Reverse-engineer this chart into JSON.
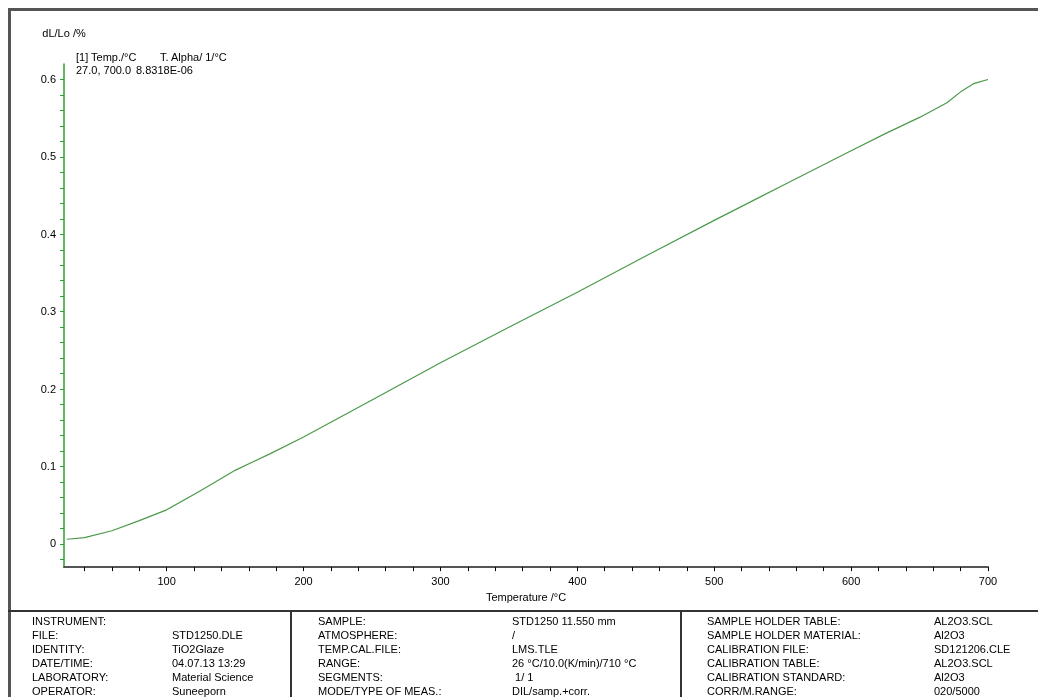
{
  "chart_data": {
    "type": "line",
    "xlabel": "Temperature /°C",
    "ylabel": "dL/Lo /%",
    "x": [
      27,
      40,
      60,
      80,
      100,
      125,
      150,
      175,
      200,
      250,
      300,
      350,
      400,
      450,
      500,
      550,
      600,
      625,
      650,
      670,
      680,
      690,
      700
    ],
    "series": [
      {
        "color": "#4a9a4a",
        "values": [
          0.006,
          0.008,
          0.017,
          0.03,
          0.044,
          0.069,
          0.095,
          0.116,
          0.138,
          0.186,
          0.234,
          0.28,
          0.325,
          0.372,
          0.418,
          0.463,
          0.508,
          0.53,
          0.551,
          0.57,
          0.584,
          0.595,
          0.6
        ]
      }
    ],
    "xlim": [
      25,
      700
    ],
    "ylim": [
      -0.03,
      0.62
    ],
    "xticks": [
      {
        "value": 40,
        "label": null
      },
      {
        "value": 60,
        "label": null
      },
      {
        "value": 80,
        "label": null
      },
      100,
      {
        "value": 120,
        "label": null
      },
      {
        "value": 140,
        "label": null
      },
      {
        "value": 160,
        "label": null
      },
      {
        "value": 180,
        "label": null
      },
      200,
      {
        "value": 220,
        "label": null
      },
      {
        "value": 240,
        "label": null
      },
      {
        "value": 260,
        "label": null
      },
      {
        "value": 280,
        "label": null
      },
      300,
      {
        "value": 320,
        "label": null
      },
      {
        "value": 340,
        "label": null
      },
      {
        "value": 360,
        "label": null
      },
      {
        "value": 380,
        "label": null
      },
      400,
      {
        "value": 420,
        "label": null
      },
      {
        "value": 440,
        "label": null
      },
      {
        "value": 460,
        "label": null
      },
      {
        "value": 480,
        "label": null
      },
      500,
      {
        "value": 520,
        "label": null
      },
      {
        "value": 540,
        "label": null
      },
      {
        "value": 560,
        "label": null
      },
      {
        "value": 580,
        "label": null
      },
      600,
      {
        "value": 620,
        "label": null
      },
      {
        "value": 640,
        "label": null
      },
      {
        "value": 660,
        "label": null
      },
      {
        "value": 680,
        "label": null
      },
      700
    ],
    "yticks": [
      {
        "value": -0.02,
        "label": null
      },
      0,
      {
        "value": 0.02,
        "label": null
      },
      {
        "value": 0.04,
        "label": null
      },
      {
        "value": 0.06,
        "label": null
      },
      {
        "value": 0.08,
        "label": null
      },
      0.1,
      {
        "value": 0.12,
        "label": null
      },
      {
        "value": 0.14,
        "label": null
      },
      {
        "value": 0.16,
        "label": null
      },
      {
        "value": 0.18,
        "label": null
      },
      0.2,
      {
        "value": 0.22,
        "label": null
      },
      {
        "value": 0.24,
        "label": null
      },
      {
        "value": 0.26,
        "label": null
      },
      {
        "value": 0.28,
        "label": null
      },
      0.3,
      {
        "value": 0.32,
        "label": null
      },
      {
        "value": 0.34,
        "label": null
      },
      {
        "value": 0.36,
        "label": null
      },
      {
        "value": 0.38,
        "label": null
      },
      0.4,
      {
        "value": 0.42,
        "label": null
      },
      {
        "value": 0.44,
        "label": null
      },
      {
        "value": 0.46,
        "label": null
      },
      {
        "value": 0.48,
        "label": null
      },
      0.5,
      {
        "value": 0.52,
        "label": null
      },
      {
        "value": 0.54,
        "label": null
      },
      {
        "value": 0.56,
        "label": null
      },
      {
        "value": 0.58,
        "label": null
      },
      0.6
    ],
    "marker": "none",
    "line_style": "solid",
    "annotations": [
      "[1] Temp./°C",
      "T. Alpha/ 1/°C",
      "27.0, 700.0",
      "8.8318E-06",
      "INSTRUMENT:",
      null,
      "FILE:",
      "STD1250.DLE",
      "IDENTITY:",
      "TiO2Glaze",
      "DATE/TIME:",
      "04.07.13 13:29",
      "LABORATORY:",
      "Material Science",
      "OPERATOR:",
      "Suneeporn",
      "SAMPLE:",
      "STD1250 11.550 mm",
      "ATMOSPHERE:",
      "/",
      "TEMP.CAL.FILE:",
      "LMS.TLE",
      "RANGE:",
      "26 °C/10.0(K/min)/710 °C",
      "SEGMENTS:",
      " 1/ 1",
      "MODE/TYPE OF MEAS.:",
      "DIL/samp.+corr.",
      "SAMPLE HOLDER TABLE:",
      "AL2O3.SCL",
      "SAMPLE HOLDER MATERIAL:",
      "Al2O3",
      "CALIBRATION FILE:",
      "SD121206.CLE",
      "CALIBRATION TABLE:",
      "AL2O3.SCL",
      "CALIBRATION STANDARD:",
      "Al2O3",
      "CORR/M.RANGE:",
      "020/5000"
    ]
  }
}
